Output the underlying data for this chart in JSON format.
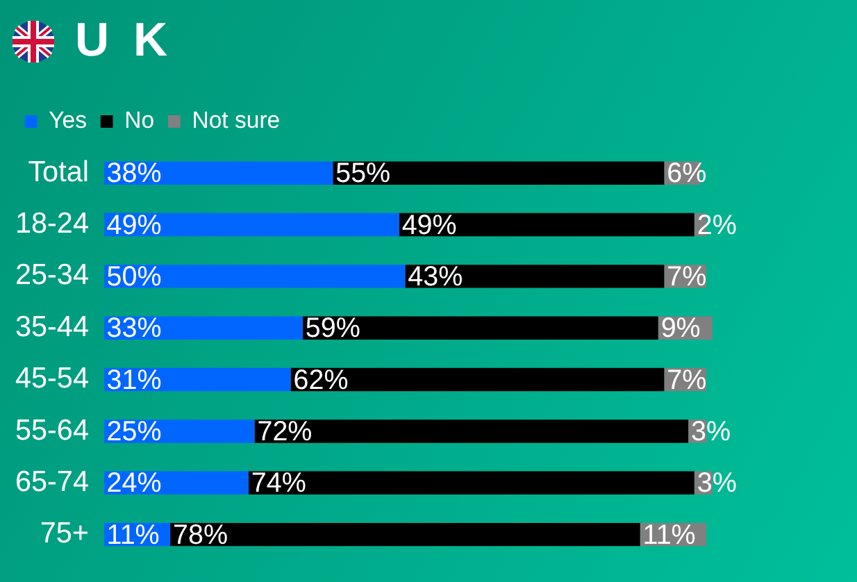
{
  "chart_data": {
    "type": "bar",
    "title": "U K",
    "orientation": "horizontal",
    "stacked": true,
    "legend": "top left",
    "tick_labels": "y",
    "grid": false,
    "categories": [
      "Total",
      "18-24",
      "25-34",
      "35-44",
      "45-54",
      "55-64",
      "65-74",
      "75+"
    ],
    "series": [
      {
        "name": "Yes",
        "color": "#0066ff",
        "values": [
          38,
          49,
          50,
          33,
          31,
          25,
          24,
          11
        ],
        "value_labels": [
          "38%",
          "49%",
          "50%",
          "33%",
          "31%",
          "25%",
          "24%",
          "11%"
        ]
      },
      {
        "name": "No",
        "color": "#000000",
        "values": [
          55,
          49,
          43,
          59,
          62,
          72,
          74,
          78
        ],
        "value_labels": [
          "55%",
          "49%",
          "43%",
          "59%",
          "62%",
          "72%",
          "74%",
          "78%"
        ]
      },
      {
        "name": "Not sure",
        "color": "#808080",
        "values": [
          6,
          2,
          7,
          9,
          7,
          3,
          3,
          11
        ],
        "value_labels": [
          "6%",
          "2%",
          "7%",
          "9%",
          "7%",
          "3%",
          "3%",
          "11%"
        ]
      }
    ]
  }
}
